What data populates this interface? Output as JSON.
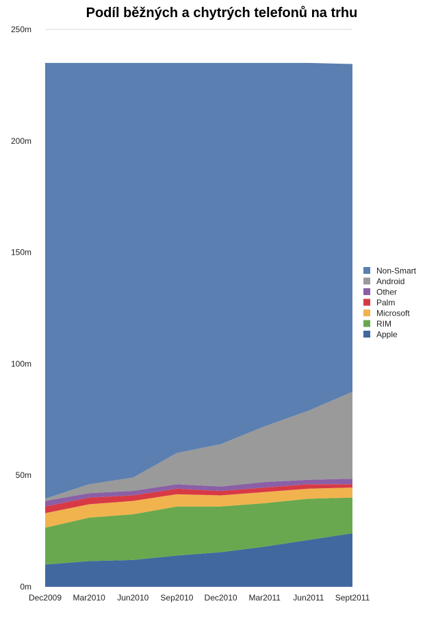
{
  "chart_data": {
    "type": "area",
    "stacked": true,
    "title": "Podíl běžných a chytrých telefonů na trhu",
    "xlabel": "",
    "ylabel": "",
    "ylim": [
      0,
      250
    ],
    "yticks": [
      0,
      50,
      100,
      150,
      200,
      250
    ],
    "ytick_labels": [
      "0m",
      "50m",
      "100m",
      "150m",
      "200m",
      "250m"
    ],
    "x": [
      "Dec2009",
      "Mar2010",
      "Jun2010",
      "Sep2010",
      "Dec2010",
      "Mar2011",
      "Jun2011",
      "Sept2011"
    ],
    "legend_position": "right",
    "series": [
      {
        "name": "Apple",
        "color": "#41689f",
        "values": [
          10,
          11.5,
          12,
          14,
          15.5,
          18,
          21,
          24
        ]
      },
      {
        "name": "RIM",
        "color": "#6aa84f",
        "values": [
          16.5,
          19.5,
          20.5,
          22,
          20.5,
          19.5,
          18.5,
          16
        ]
      },
      {
        "name": "Microsoft",
        "color": "#f1b34e",
        "values": [
          6.5,
          6,
          6,
          5.5,
          5,
          5,
          4.5,
          4.5
        ]
      },
      {
        "name": "Palm",
        "color": "#d83a45",
        "values": [
          3,
          3,
          2.5,
          2.5,
          2,
          2,
          2,
          1.5
        ]
      },
      {
        "name": "Other",
        "color": "#8b5fa6",
        "values": [
          2.5,
          2,
          2,
          2,
          2,
          2.5,
          2,
          2.5
        ]
      },
      {
        "name": "Android",
        "color": "#9a9a9a",
        "values": [
          1,
          4,
          6,
          14,
          19,
          25,
          31,
          39
        ]
      },
      {
        "name": "Non-Smart",
        "color": "#5a7fb0",
        "values": [
          195.5,
          189,
          186,
          175,
          171,
          163,
          156,
          147
        ]
      }
    ],
    "legend_order": [
      "Non-Smart",
      "Android",
      "Other",
      "Palm",
      "Microsoft",
      "RIM",
      "Apple"
    ]
  }
}
